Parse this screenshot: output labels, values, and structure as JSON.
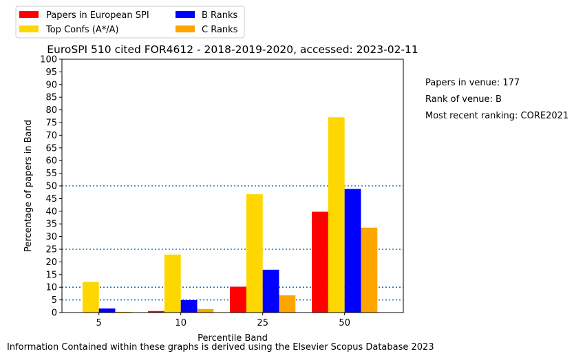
{
  "chart_data": {
    "type": "bar",
    "title": "EuroSPI 510 cited FOR4612 - 2018-2019-2020, accessed: 2023-02-11",
    "xlabel": "Percentile Band",
    "ylabel": "Percentage of papers in Band",
    "categories": [
      "5",
      "10",
      "25",
      "50"
    ],
    "ylim": [
      0,
      100
    ],
    "yticks": [
      0,
      5,
      10,
      15,
      20,
      25,
      30,
      35,
      40,
      45,
      50,
      55,
      60,
      65,
      70,
      75,
      80,
      85,
      90,
      95,
      100
    ],
    "series": [
      {
        "name": "Papers in European SPI",
        "color": "#ff0000",
        "values": [
          0,
          0.6,
          10.2,
          39.8
        ]
      },
      {
        "name": "Top Confs (A*/A)",
        "color": "#ffd700",
        "values": [
          12.1,
          22.9,
          46.7,
          77.1
        ]
      },
      {
        "name": "B Ranks",
        "color": "#0000ff",
        "values": [
          1.6,
          4.9,
          16.9,
          48.8
        ]
      },
      {
        "name": "C Ranks",
        "color": "#ffa500",
        "values": [
          0.3,
          1.4,
          6.8,
          33.5
        ]
      }
    ],
    "reference_lines": [
      5,
      10,
      25,
      50
    ],
    "reference_line_color": "#1f77b4",
    "legend_position": "top-left, outside plot",
    "grid": false
  },
  "annotations": [
    "Papers in venue: 177",
    "Rank of venue: B",
    "Most recent ranking: CORE2021"
  ],
  "footer": "Information Contained within these graphs is derived using the Elsevier Scopus Database 2023"
}
